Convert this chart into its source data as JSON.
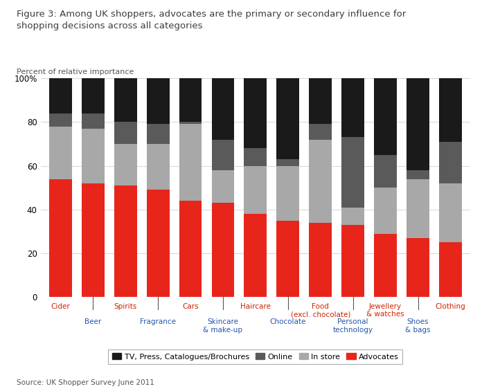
{
  "title_line1": "Figure 3: Among UK shoppers, advocates are the primary or secondary influence for",
  "title_line2": "shopping decisions across all categories",
  "ylabel": "Percent of relative importance",
  "source": "Source: UK Shopper Survey June 2011",
  "categories": [
    "Cider",
    "Beer",
    "Spirits",
    "Fragrance",
    "Cars",
    "Skincare\n& make-up",
    "Haircare",
    "Chocolate",
    "Food\n(excl. chocolate)",
    "Personal\ntechnology",
    "Jewellery\n& watches",
    "Shoes\n& bags",
    "Clothing"
  ],
  "cat_colors": [
    "#cc2200",
    "#2255aa",
    "#cc2200",
    "#2255aa",
    "#cc2200",
    "#2255aa",
    "#cc2200",
    "#2255aa",
    "#cc2200",
    "#2255aa",
    "#cc2200",
    "#2255aa",
    "#cc2200"
  ],
  "advocates": [
    54,
    52,
    51,
    49,
    44,
    43,
    38,
    35,
    34,
    33,
    29,
    27,
    25
  ],
  "instore": [
    24,
    25,
    19,
    21,
    35,
    15,
    22,
    25,
    38,
    8,
    21,
    27,
    27
  ],
  "online": [
    6,
    7,
    10,
    9,
    1,
    14,
    8,
    3,
    7,
    32,
    15,
    4,
    19
  ],
  "tv": [
    16,
    16,
    20,
    21,
    20,
    28,
    32,
    37,
    21,
    27,
    35,
    42,
    29
  ],
  "colors": {
    "advocates": "#e8251a",
    "instore": "#a8a8a8",
    "online": "#5a5a5a",
    "tv": "#1a1a1a"
  },
  "title_color": "#3c3c3c",
  "background": "#ffffff",
  "ylim": [
    0,
    100
  ]
}
